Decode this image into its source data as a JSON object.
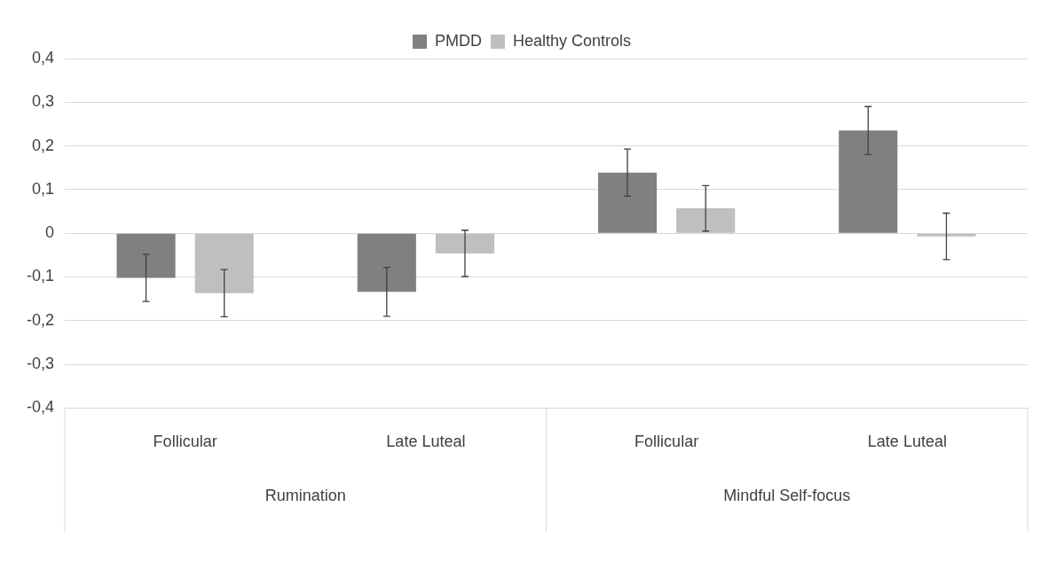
{
  "chart_data": {
    "type": "bar",
    "categories": [
      "Follicular",
      "Late Luteal",
      "Follicular",
      "Late Luteal"
    ],
    "series": [
      {
        "name": "PMDD",
        "color": "#808080",
        "values": [
          -0.102,
          -0.134,
          0.139,
          0.235
        ],
        "errors": [
          0.054,
          0.056,
          0.054,
          0.055
        ]
      },
      {
        "name": "Healthy Controls",
        "color": "#bfbfbf",
        "values": [
          -0.137,
          -0.046,
          0.057,
          -0.007
        ],
        "errors": [
          0.054,
          0.053,
          0.052,
          0.053
        ]
      }
    ],
    "annotations": [
      "Rumination",
      "Mindful Self-focus"
    ],
    "ylim": [
      -0.4,
      0.4
    ],
    "yticks": [
      {
        "value": -0.4,
        "label": "-0,4"
      },
      {
        "value": -0.3,
        "label": "-0,3"
      },
      {
        "value": -0.2,
        "label": "-0,2"
      },
      {
        "value": -0.1,
        "label": "-0,1"
      },
      0,
      {
        "value": 0.1,
        "label": "0,1"
      },
      {
        "value": 0.2,
        "label": "0,2"
      },
      {
        "value": 0.3,
        "label": "0,3"
      },
      {
        "value": 0.4,
        "label": "0,4"
      }
    ],
    "grid": "y",
    "legend": "top"
  }
}
